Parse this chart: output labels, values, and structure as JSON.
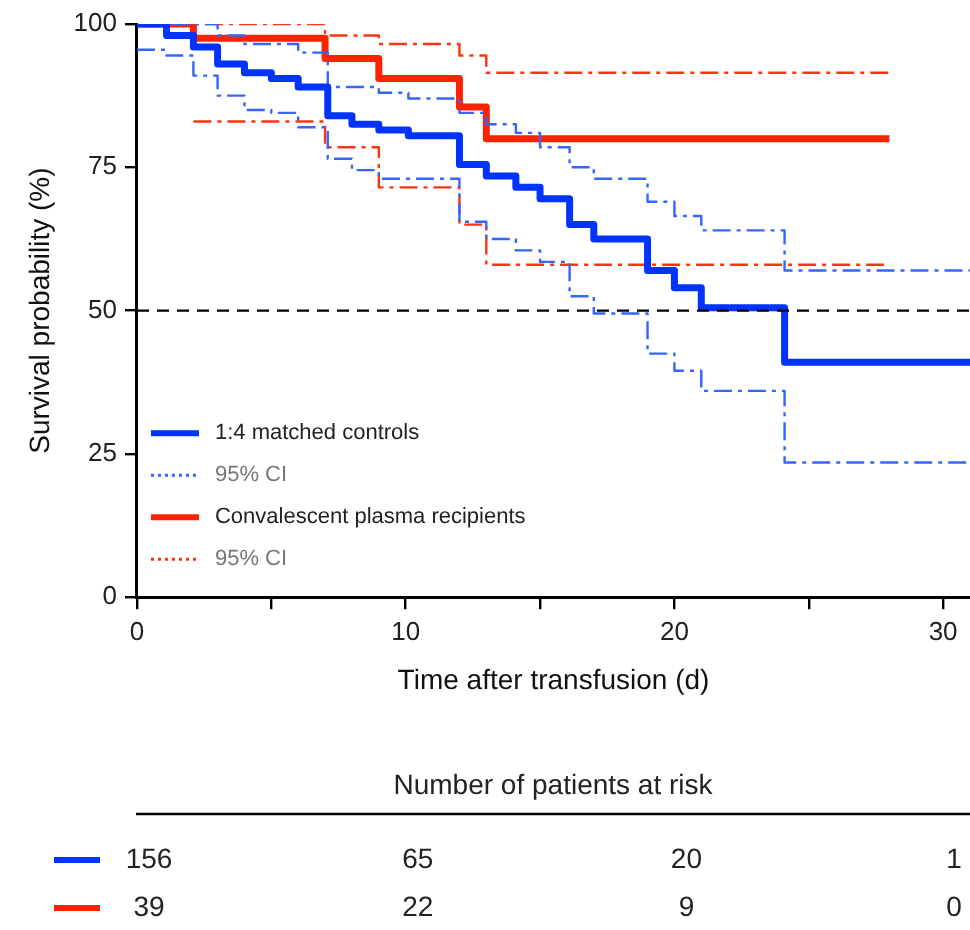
{
  "chart_data": {
    "type": "step",
    "xlabel": "Time after transfusion (d)",
    "ylabel": "Survival probability (%)",
    "xlim": [
      0,
      31
    ],
    "ylim": [
      0,
      100
    ],
    "xticks": [
      0,
      {
        "value": 5,
        "label": null
      },
      10,
      {
        "value": 15,
        "label": null
      },
      20,
      {
        "value": 25,
        "label": null
      },
      30
    ],
    "yticks": [
      0,
      25,
      50,
      75,
      100
    ],
    "grid": false,
    "legend": "bottom left",
    "marker": "none",
    "ref_lines": [
      {
        "axis": "y",
        "value": 50,
        "color": "#000000",
        "line_style": "dashed"
      }
    ],
    "series": [
      {
        "name": "1:4 matched controls",
        "color": "#0033ff",
        "line_style": "solid",
        "x": [
          0,
          1.1,
          2.1,
          3,
          4,
          5,
          6,
          7.1,
          8,
          9,
          10.1,
          12,
          13,
          14.1,
          15,
          16.1,
          17,
          19,
          20,
          21,
          24.1,
          31
        ],
        "values": [
          100,
          98,
          96,
          93,
          91.5,
          90.5,
          89,
          84,
          82.5,
          81.5,
          80.5,
          75.5,
          73.5,
          71.5,
          69.5,
          65,
          62.5,
          57,
          54,
          50.5,
          41,
          41
        ]
      },
      {
        "name": "95% CI",
        "color": "#3366ff",
        "line_style": "dashed",
        "x": [
          0,
          3,
          4,
          6,
          7.1,
          9,
          10.1,
          12,
          13,
          14.1,
          15,
          16.1,
          17,
          19,
          20,
          21,
          24.1,
          31
        ],
        "values": [
          100,
          98,
          96.5,
          95,
          89,
          88,
          87,
          84.5,
          82.5,
          81,
          78.5,
          75,
          73,
          69,
          66.5,
          64,
          57,
          57
        ]
      },
      {
        "color": "#3366ff",
        "line_style": "dashed",
        "x": [
          0,
          1.1,
          2.1,
          3,
          4,
          5,
          6,
          7.1,
          8,
          9,
          12,
          13,
          14.1,
          15,
          16.1,
          17,
          19,
          20,
          21,
          24.1,
          31
        ],
        "values": [
          95.5,
          94.5,
          91,
          87.5,
          85,
          84.5,
          82,
          76.5,
          74.5,
          73,
          65.5,
          62.5,
          60.5,
          58.5,
          52.5,
          49.5,
          42.5,
          39.5,
          36,
          23.5,
          23.5
        ]
      },
      {
        "name": "Convalescent plasma recipients",
        "color": "#ff2200",
        "line_style": "solid",
        "x": [
          0,
          2.1,
          7,
          9,
          12,
          13,
          28
        ],
        "values": [
          100,
          97.5,
          94,
          90.5,
          85.5,
          80,
          80
        ]
      },
      {
        "name": "95% CI",
        "color": "#ff3311",
        "line_style": "dashed",
        "x": [
          0,
          7,
          9,
          12,
          13,
          28
        ],
        "values": [
          100,
          98,
          96.5,
          94.5,
          91.5,
          91.5
        ]
      },
      {
        "color": "#ff3311",
        "line_style": "dashed",
        "x": [
          2.1,
          7,
          9,
          12,
          13,
          28
        ],
        "values": [
          83,
          78.5,
          71.5,
          65,
          58,
          58
        ]
      }
    ],
    "annotations": [
      "Number of patients at risk",
      "156",
      "65",
      "20",
      "1",
      "39",
      "22",
      "9",
      "0"
    ]
  }
}
